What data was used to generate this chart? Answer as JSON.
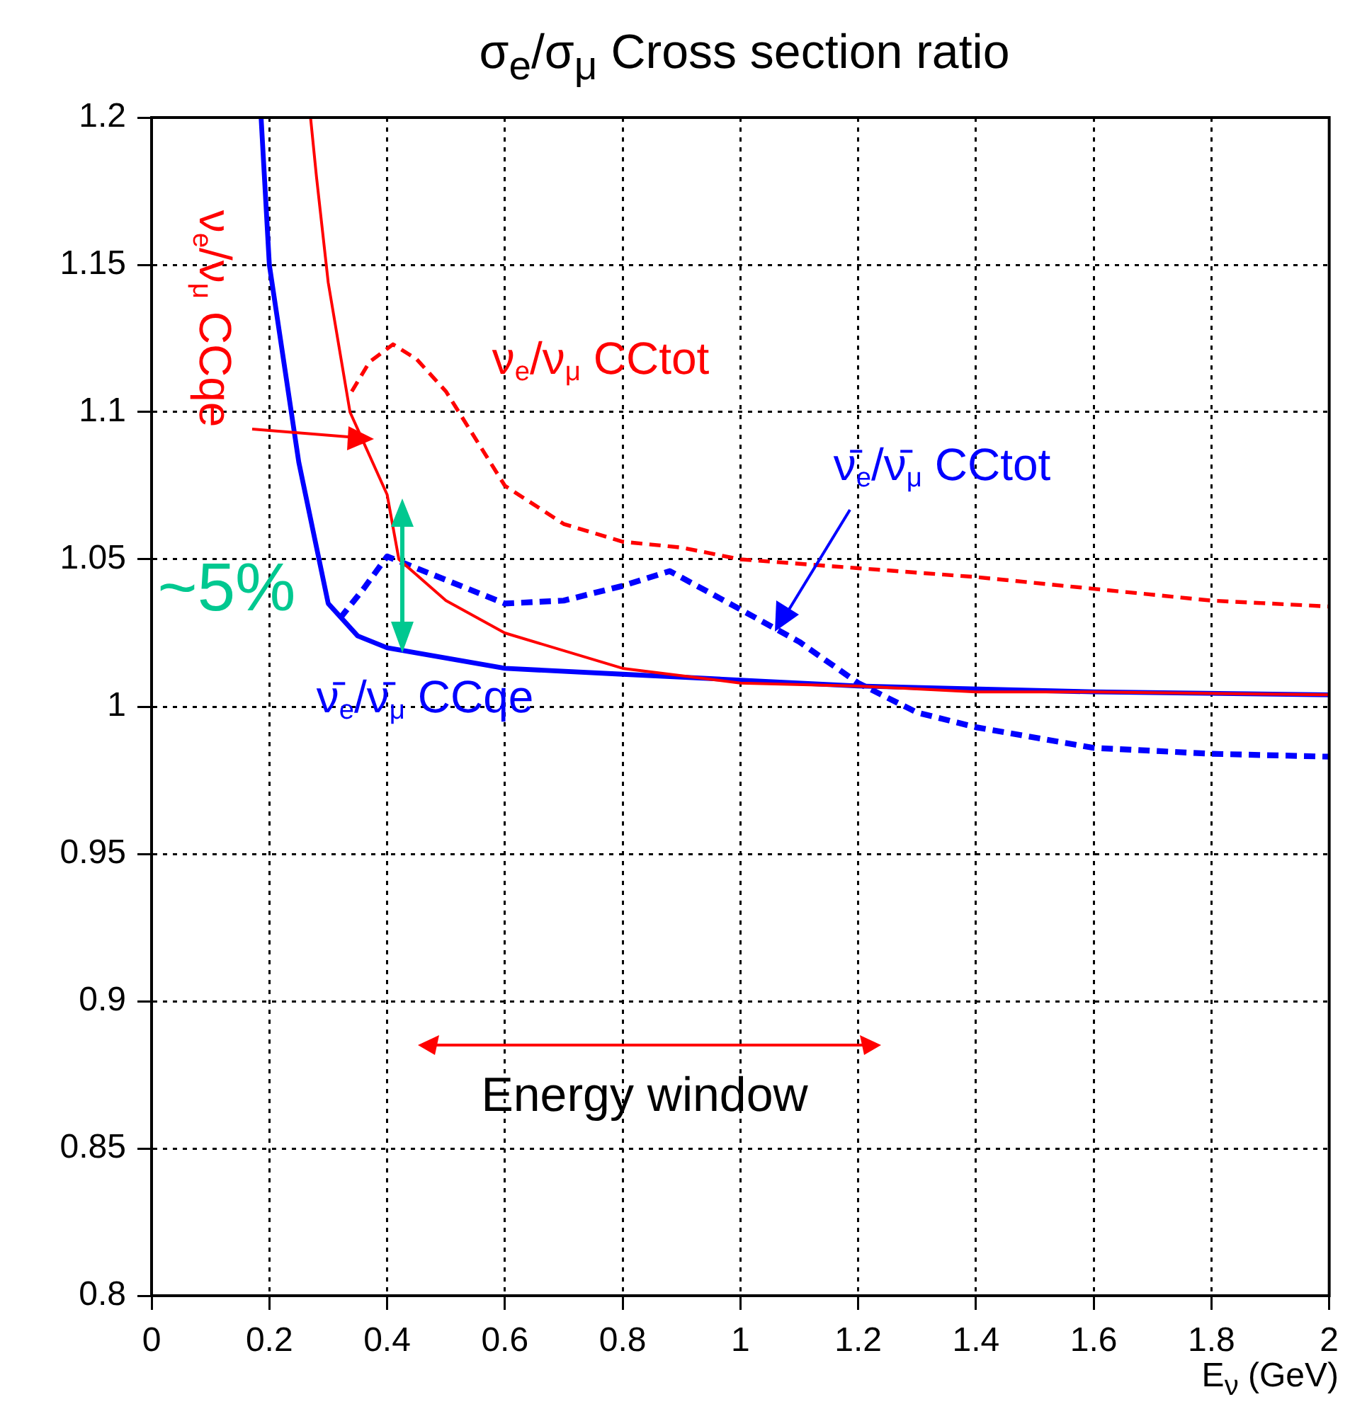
{
  "chart_data": {
    "type": "line",
    "title": "σ$_{e}$/σ$_{μ}$ Cross section ratio",
    "xlabel": "E$_{ν}$ (GeV)",
    "xlim": [
      0,
      2
    ],
    "xticks": [
      0,
      0.2,
      0.4,
      0.6,
      0.8,
      1,
      1.2,
      1.4,
      1.6,
      1.8,
      2
    ],
    "ylim": [
      0.8,
      1.2
    ],
    "yticks": [
      0.8,
      0.85,
      0.9,
      0.95,
      1,
      1.05,
      1.1,
      1.15,
      1.2
    ],
    "grid": true,
    "legend": false,
    "marker": "none",
    "series": [
      {
        "name": "ν$_{e}$/ν$_{μ}$ CCqe",
        "color": "#ff0000",
        "line_style": "solid",
        "x": [
          0.27,
          0.28,
          0.3,
          0.337,
          0.4,
          0.42,
          0.5,
          0.6,
          0.8,
          1.0,
          1.2,
          1.4,
          1.6,
          2.0
        ],
        "values": [
          1.2,
          1.18,
          1.144,
          1.1,
          1.072,
          1.05,
          1.036,
          1.025,
          1.013,
          1.008,
          1.007,
          1.005,
          1.005,
          1.004
        ]
      },
      {
        "name": "ν$_{e}$/ν$_{μ}$ CCtot",
        "color": "#ff0000",
        "line_style": "dashed",
        "x": [
          0.34,
          0.37,
          0.41,
          0.45,
          0.5,
          0.6,
          0.7,
          0.8,
          0.9,
          1.0,
          1.2,
          1.4,
          1.6,
          1.8,
          2.0
        ],
        "values": [
          1.107,
          1.117,
          1.123,
          1.118,
          1.107,
          1.075,
          1.062,
          1.056,
          1.054,
          1.05,
          1.047,
          1.044,
          1.04,
          1.036,
          1.034
        ]
      },
      {
        "name": "ν̄$_{e}$/ν̄$_{μ}$ CCqe",
        "color": "#0000ff",
        "line_style": "solid",
        "x": [
          0.186,
          0.2,
          0.25,
          0.3,
          0.35,
          0.4,
          0.6,
          0.8,
          1.0,
          1.2,
          1.6,
          2.0
        ],
        "values": [
          1.2,
          1.15,
          1.083,
          1.035,
          1.024,
          1.02,
          1.013,
          1.011,
          1.009,
          1.007,
          1.005,
          1.004
        ]
      },
      {
        "name": "ν̄$_{e}$/ν̄$_{μ}$ CCtot",
        "color": "#0000ff",
        "line_style": "dashed",
        "x": [
          0.32,
          0.36,
          0.4,
          0.5,
          0.6,
          0.7,
          0.8,
          0.88,
          1.0,
          1.1,
          1.2,
          1.3,
          1.4,
          1.6,
          1.8,
          2.0
        ],
        "values": [
          1.03,
          1.04,
          1.051,
          1.043,
          1.035,
          1.036,
          1.041,
          1.046,
          1.033,
          1.022,
          1.008,
          0.998,
          0.993,
          0.986,
          0.984,
          0.983
        ]
      }
    ],
    "annotations": [
      "~5%",
      "Energy window"
    ]
  }
}
